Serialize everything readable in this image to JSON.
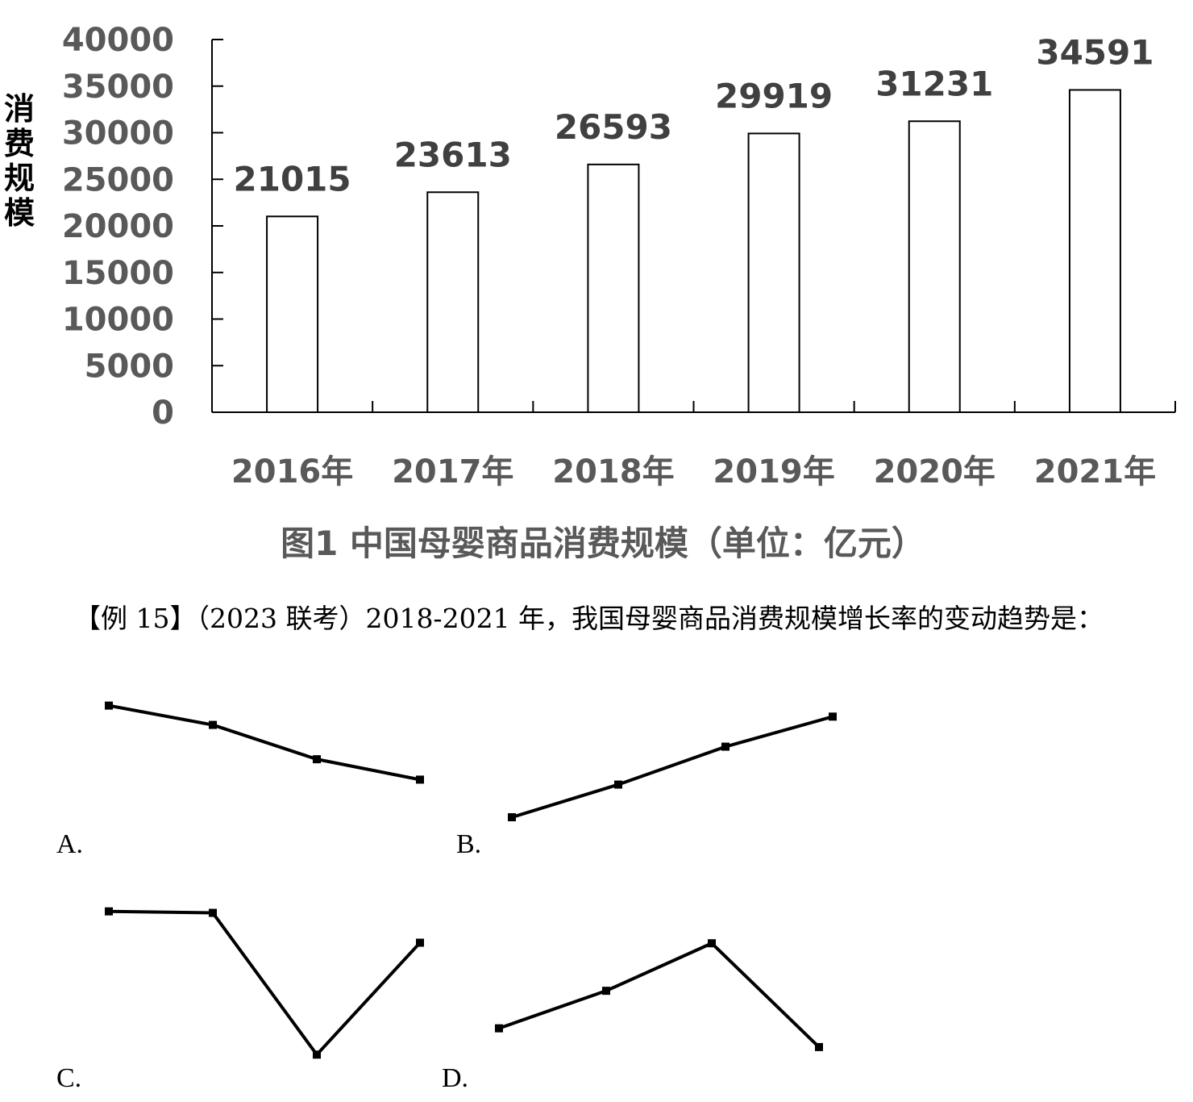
{
  "chart_data": [
    {
      "type": "bar",
      "title": "图1  中国母婴商品消费规模（单位：亿元）",
      "ylabel": "消费规模",
      "xlabel": "",
      "categories": [
        "2016年",
        "2017年",
        "2018年",
        "2019年",
        "2020年",
        "2021年"
      ],
      "values": [
        21015,
        23613,
        26593,
        29919,
        31231,
        34591
      ],
      "data_labels": [
        "21015",
        "23613",
        "26593",
        "29919",
        "31231",
        "34591"
      ],
      "ylim": [
        0,
        40000
      ],
      "yticks": [
        "0",
        "5000",
        "10000",
        "15000",
        "20000",
        "25000",
        "30000",
        "35000",
        "40000"
      ],
      "grid": false,
      "bar_fill": "#ffffff",
      "bar_stroke": "#000000"
    },
    {
      "type": "line",
      "option": "A.",
      "values": [
        0.92,
        0.74,
        0.42,
        0.23
      ]
    },
    {
      "type": "line",
      "option": "B.",
      "values": [
        0.08,
        0.33,
        0.62,
        0.85
      ]
    },
    {
      "type": "line",
      "option": "C.",
      "values": [
        0.98,
        0.97,
        0.02,
        0.77
      ]
    },
    {
      "type": "line",
      "option": "D.",
      "values": [
        0.17,
        0.47,
        0.85,
        0.02
      ]
    }
  ],
  "question": {
    "text": "【例 15】（2023 联考）2018-2021 年，我国母婴商品消费规模增长率的变动趋势是："
  },
  "options": {
    "A": "A.",
    "B": "B.",
    "C": "C.",
    "D": "D."
  }
}
